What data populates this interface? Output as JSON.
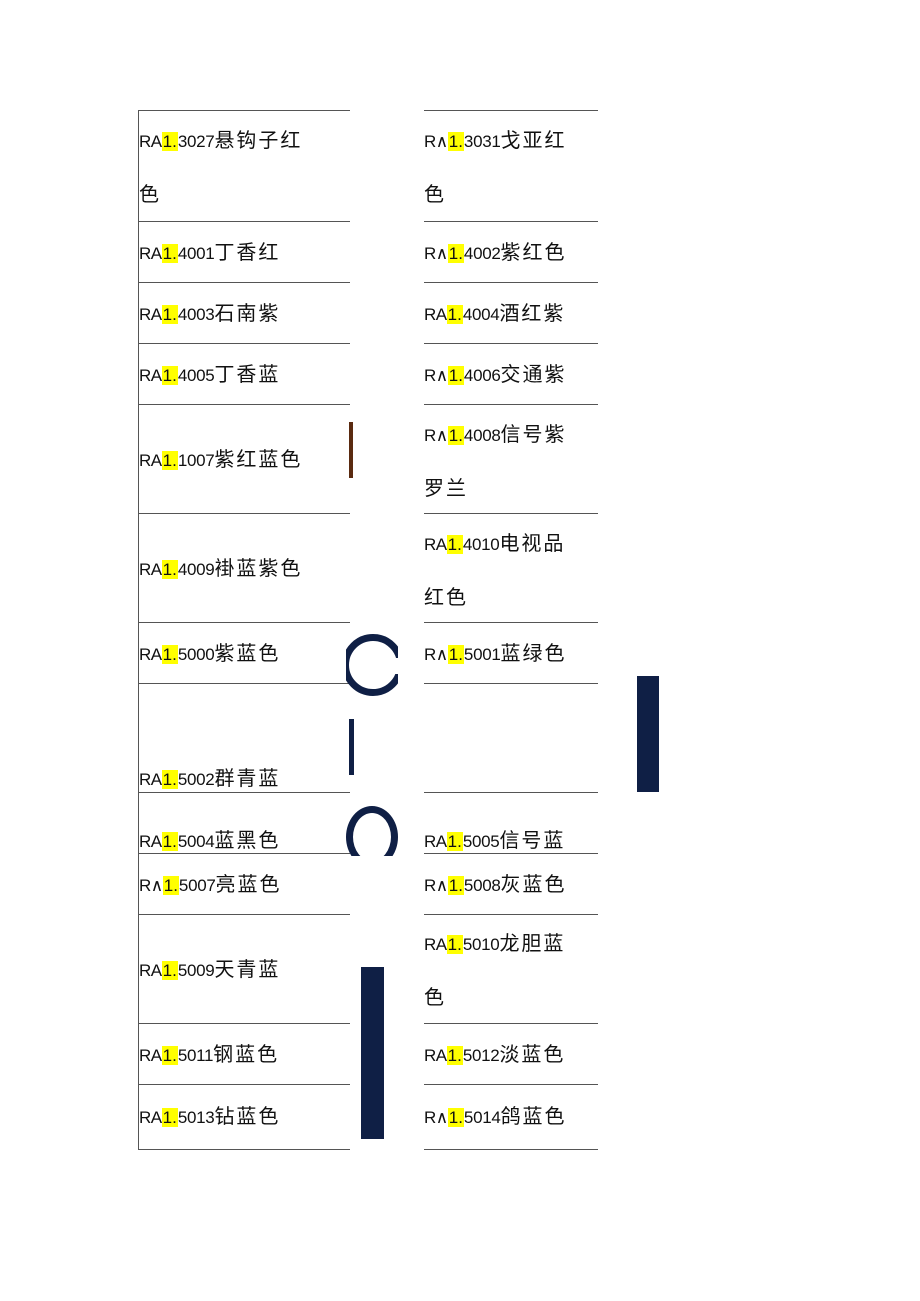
{
  "left": [
    {
      "pre": "RA",
      "hl": "1.",
      "code": "3027",
      "name": "悬钩子红",
      "line2": "色"
    },
    {
      "pre": "RA",
      "hl": "1.",
      "code": "4001",
      "name": "丁香红",
      "line2": ""
    },
    {
      "pre": "RA",
      "hl": "1.",
      "code": "4003",
      "name": "石南紫",
      "line2": ""
    },
    {
      "pre": "RA",
      "hl": "1.",
      "code": "4005",
      "name": "丁香蓝",
      "line2": ""
    },
    {
      "pre": "RA",
      "hl": "1.",
      "code": "1007",
      "name": "紫红蓝色",
      "line2": ""
    },
    {
      "pre": "RA",
      "hl": "1.",
      "code": "4009",
      "name": "褂蓝紫色",
      "line2": ""
    },
    {
      "pre": "RA",
      "hl": "1.",
      "code": "5000",
      "name": "紫蓝色",
      "line2": ""
    },
    {
      "pre": "RA",
      "hl": "1.",
      "code": "5002",
      "name": "群青蓝",
      "line2": ""
    },
    {
      "pre": "RA",
      "hl": "1.",
      "code": "5004",
      "name": "蓝黑色",
      "line2": ""
    },
    {
      "pre": "R∧",
      "hl": "1.",
      "code": "5007",
      "name": "亮蓝色",
      "line2": ""
    },
    {
      "pre": "RA",
      "hl": "1.",
      "code": "5009",
      "name": "天青蓝",
      "line2": ""
    },
    {
      "pre": "RA",
      "hl": "1.",
      "code": "5011",
      "name": "钢蓝色",
      "line2": ""
    },
    {
      "pre": "RA",
      "hl": "1.",
      "code": "5013",
      "name": "钻蓝色",
      "line2": ""
    }
  ],
  "right": [
    {
      "pre": "R∧",
      "hl": "1.",
      "code": "3031",
      "name": "戈亚红",
      "line2": "色"
    },
    {
      "pre": "R∧",
      "hl": "1.",
      "code": "4002",
      "name": "紫红色",
      "line2": ""
    },
    {
      "pre": "RA",
      "hl": "1.",
      "code": "4004",
      "name": "酒红紫",
      "line2": ""
    },
    {
      "pre": "R∧",
      "hl": "1.",
      "code": "4006",
      "name": "交通紫",
      "line2": ""
    },
    {
      "pre": "R∧",
      "hl": "1.",
      "code": "4008",
      "name": "信号紫",
      "line2": "罗兰"
    },
    {
      "pre": "RA",
      "hl": "1.",
      "code": "4010",
      "name": "电视品",
      "line2": "红色"
    },
    {
      "pre": "R∧",
      "hl": "1.",
      "code": "5001",
      "name": "蓝绿色",
      "line2": ""
    },
    {
      "pre": "RA",
      "hl": "1.",
      "code": "5005",
      "name": "信号蓝",
      "line2": ""
    },
    {
      "pre": "R∧",
      "hl": "1.",
      "code": "5008",
      "name": "灰蓝色",
      "line2": ""
    },
    {
      "pre": "RA",
      "hl": "1.",
      "code": "5010",
      "name": "龙胆蓝",
      "line2": "色"
    },
    {
      "pre": "RA",
      "hl": "1.",
      "code": "5012",
      "name": "淡蓝色",
      "line2": ""
    },
    {
      "pre": "R∧",
      "hl": "1.",
      "code": "5014",
      "name": "鸽蓝色",
      "line2": ""
    }
  ],
  "colors": {
    "highlight": "#ffff00",
    "navy": "#0f1f45",
    "brown": "#5a2a10"
  }
}
